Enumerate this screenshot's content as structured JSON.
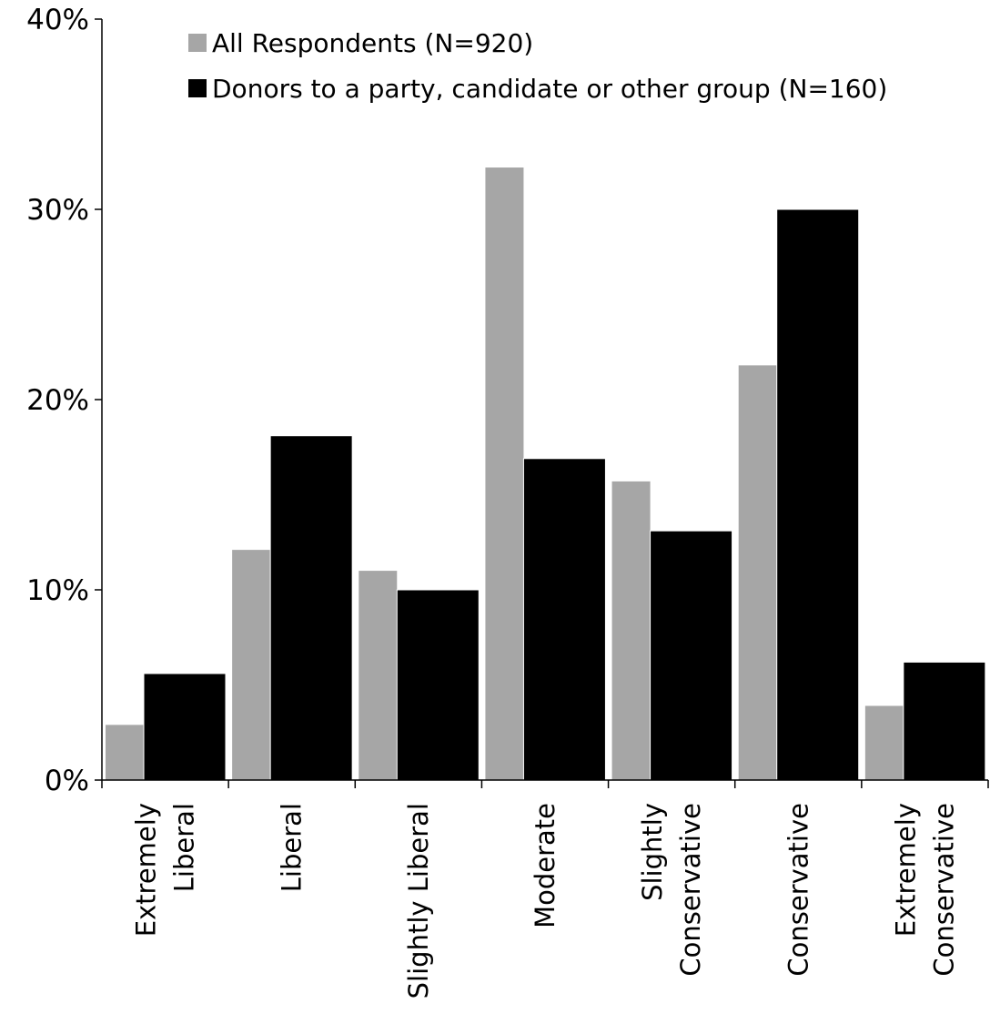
{
  "chart_data": {
    "type": "bar",
    "title": "",
    "xlabel": "",
    "ylabel": "",
    "ylim": [
      0,
      40
    ],
    "y_ticks": [
      0,
      10,
      20,
      30,
      40
    ],
    "y_tick_labels": [
      "0%",
      "10%",
      "20%",
      "30%",
      "40%"
    ],
    "grid": false,
    "legend_position": "top",
    "categories": [
      [
        "Extremely",
        "Liberal"
      ],
      [
        "Liberal"
      ],
      [
        "Slightly Liberal"
      ],
      [
        "Moderate"
      ],
      [
        "Slightly",
        "Conservative"
      ],
      [
        "Conservative"
      ],
      [
        "Extremely",
        "Conservative"
      ]
    ],
    "series": [
      {
        "name": "All Respondents (N=920)",
        "color": "#a6a6a6",
        "values": [
          2.9,
          12.1,
          11.0,
          32.2,
          15.7,
          21.8,
          3.9
        ]
      },
      {
        "name": "Donors to a party, candidate or other group (N=160)",
        "color": "#000000",
        "values": [
          5.6,
          18.1,
          10.0,
          16.9,
          13.1,
          30.0,
          6.2
        ]
      }
    ]
  }
}
